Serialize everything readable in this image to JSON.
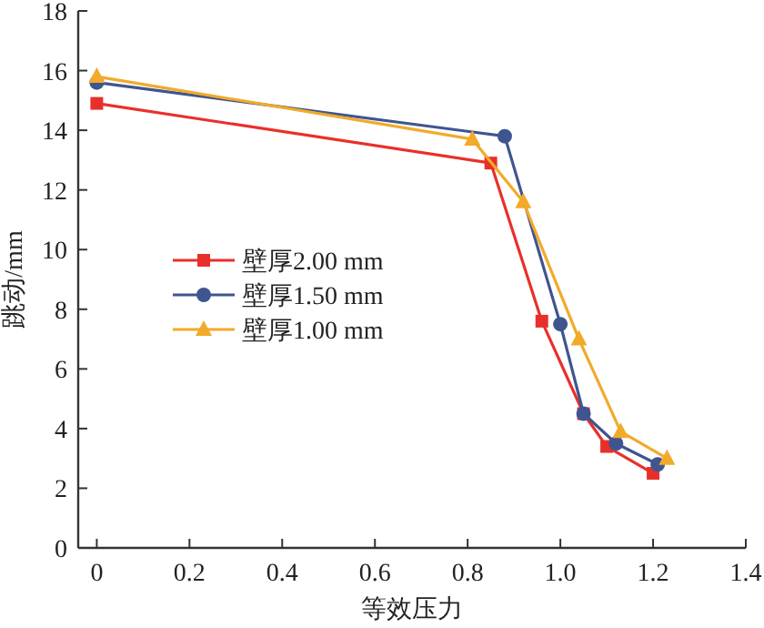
{
  "chart_data": {
    "type": "line",
    "xlabel": "等效压力",
    "ylabel": "跳动/mm",
    "xlim": [
      -0.04,
      1.4
    ],
    "xticks": [
      0,
      0.2,
      0.4,
      0.6,
      0.8,
      {
        "value": 1,
        "label": "1.0"
      },
      1.2,
      1.4
    ],
    "ylim": [
      0,
      18
    ],
    "yticks": [
      0,
      2,
      4,
      6,
      8,
      10,
      12,
      14,
      16,
      18
    ],
    "grid": false,
    "legend": "left",
    "line_style": "solid",
    "series": [
      {
        "name": "壁厚2.00 mm",
        "color": "#e8302a",
        "marker": "square",
        "x": [
          0,
          0.85,
          0.96,
          1.05,
          1.1,
          1.2
        ],
        "values": [
          14.9,
          12.9,
          7.6,
          4.5,
          3.4,
          2.5
        ]
      },
      {
        "name": "壁厚1.50 mm",
        "color": "#3f5590",
        "marker": "circle",
        "x": [
          0,
          0.88,
          1.0,
          1.05,
          1.12,
          1.21
        ],
        "values": [
          15.6,
          13.8,
          7.5,
          4.5,
          3.5,
          2.8
        ]
      },
      {
        "name": "壁厚1.00 mm",
        "color": "#f2aa2a",
        "marker": "triangle",
        "x": [
          0,
          0.81,
          0.92,
          1.04,
          1.13,
          1.23
        ],
        "values": [
          15.8,
          13.7,
          11.6,
          7.0,
          3.9,
          3.0
        ]
      }
    ]
  }
}
